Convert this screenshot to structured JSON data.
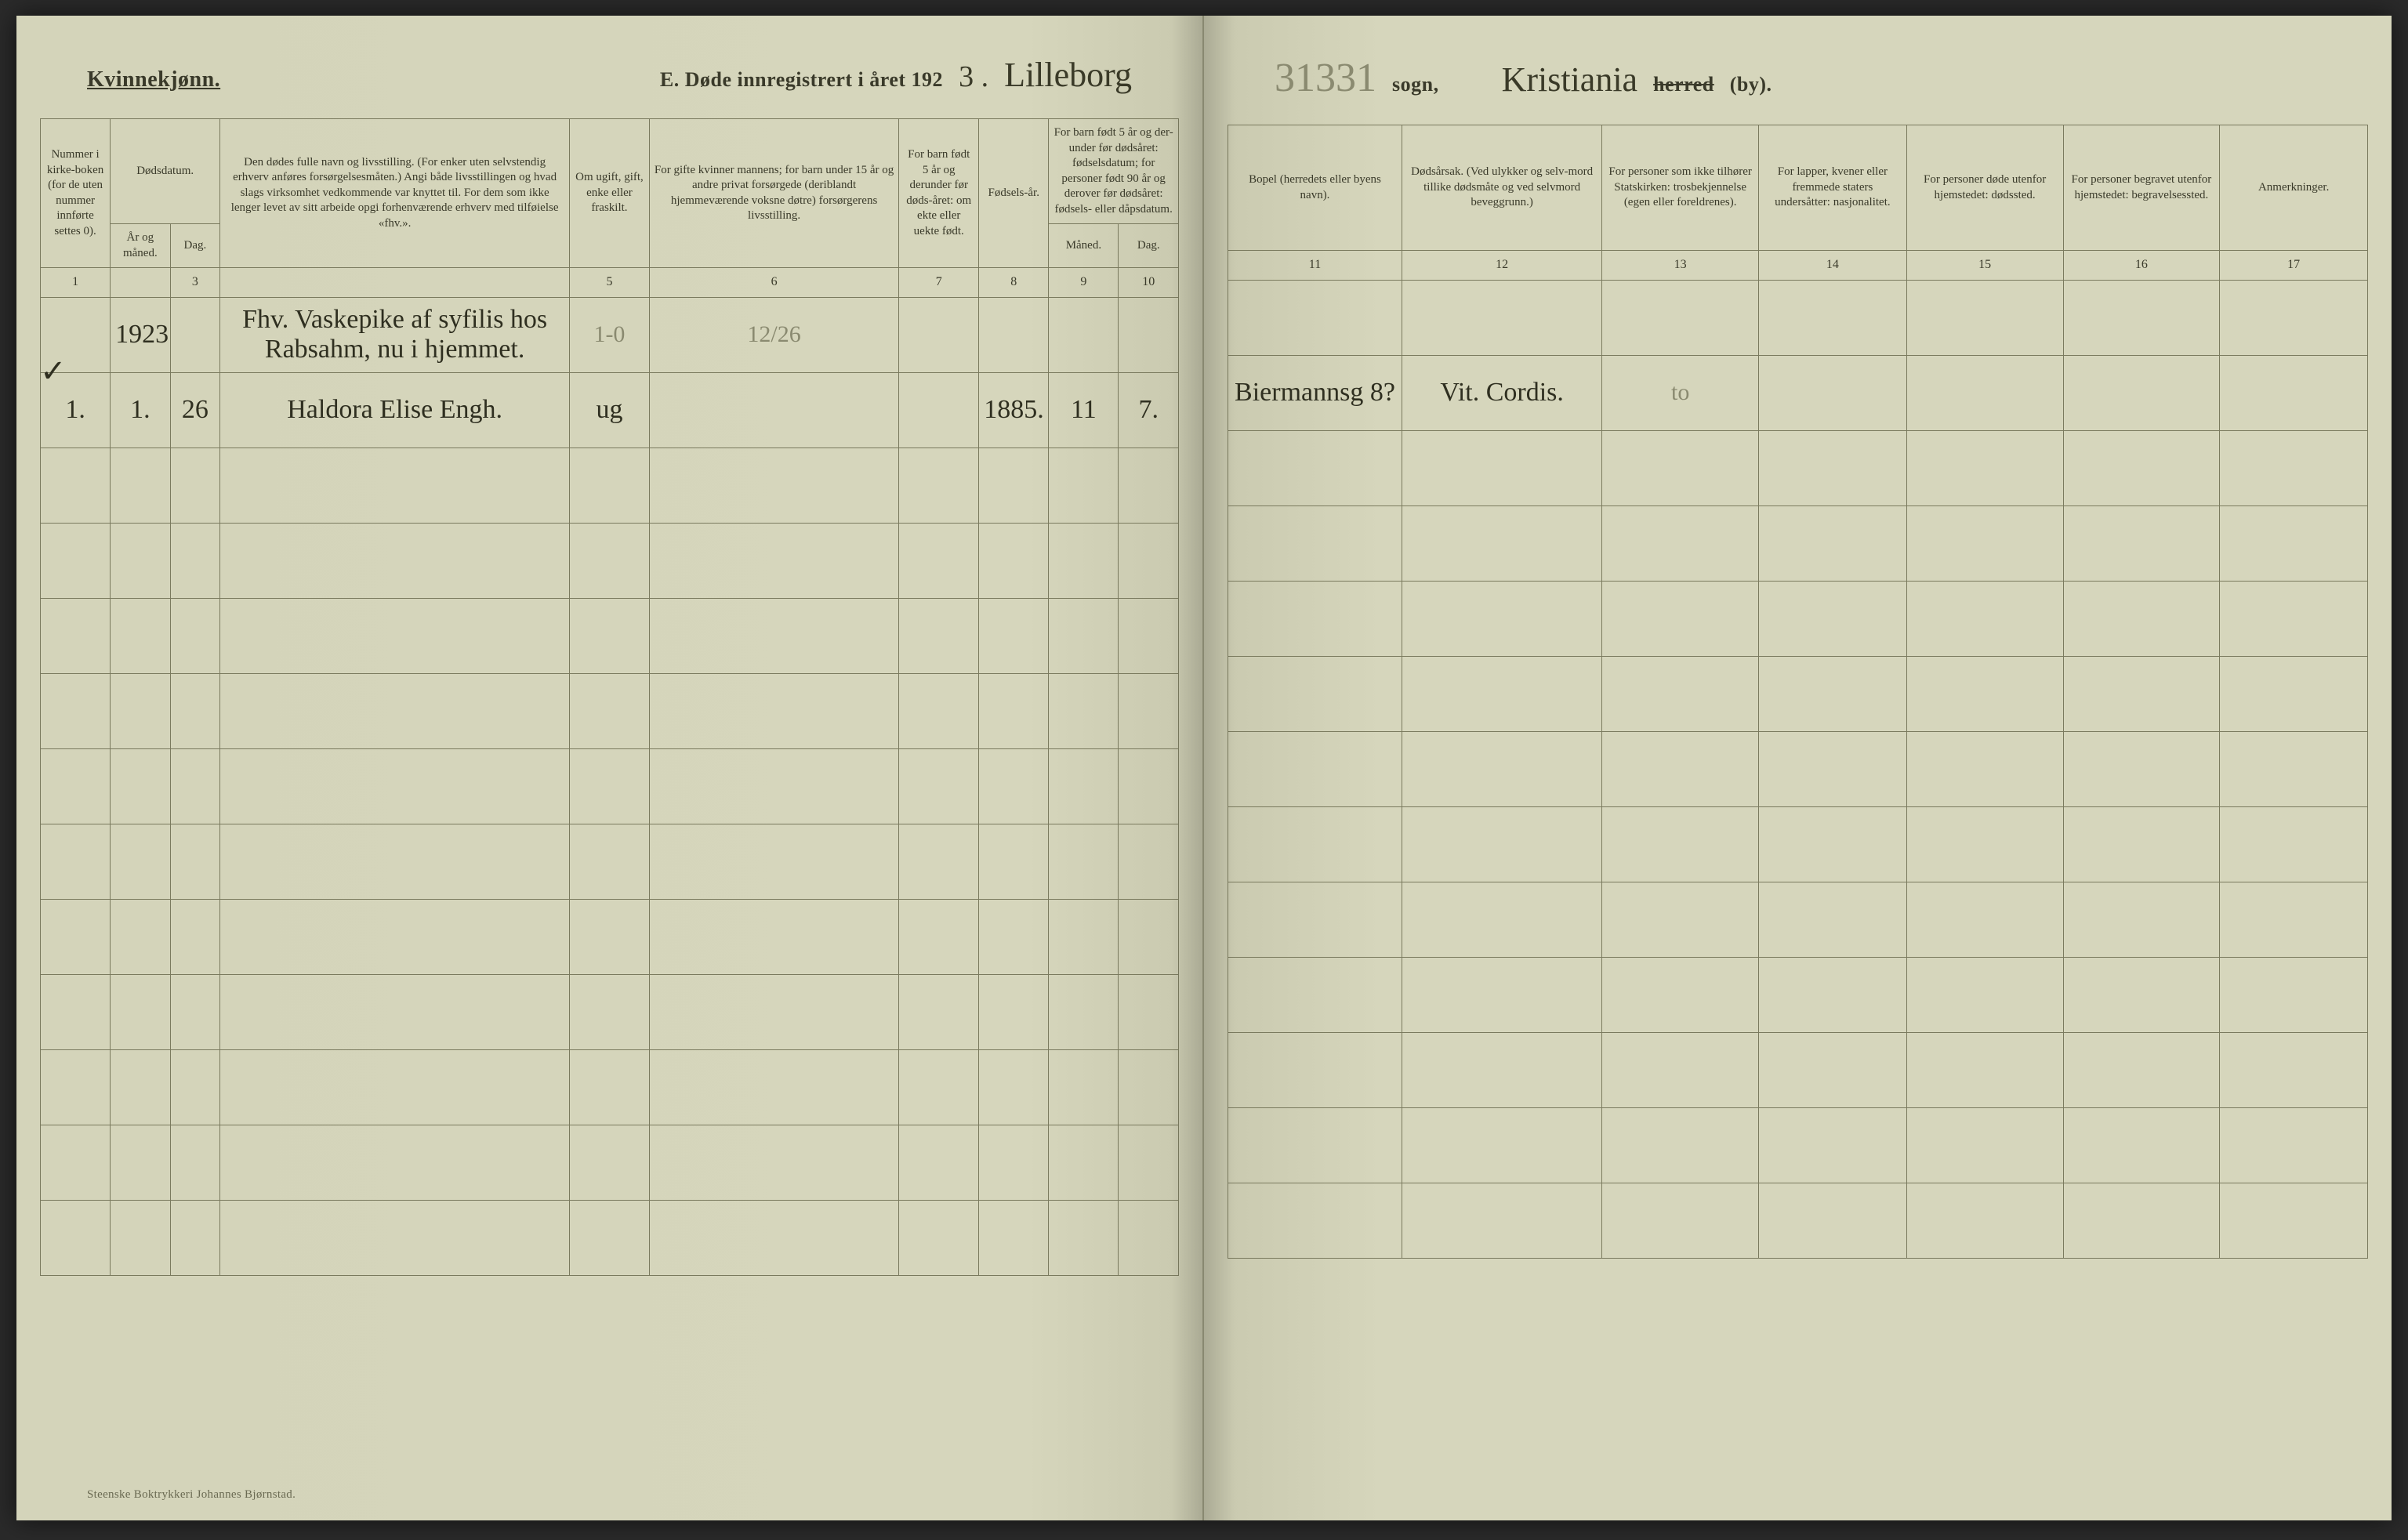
{
  "header": {
    "gender": "Kvinnekjønn.",
    "titlePrefix": "E.  Døde innregistrert i året 192",
    "yearSuffix": "3 .",
    "parishHand": "Lilleborg",
    "pencilNumber": "31331",
    "sognLabel": "sogn,",
    "herredHand": "Kristiania",
    "herredPrinted": "herred",
    "byPrinted": "(by)."
  },
  "columnsLeft": {
    "c1": "Nummer i kirke-boken (for de uten nummer innførte settes 0).",
    "c2": "Dødsdatum.",
    "c2a": "År og måned.",
    "c2b": "Dag.",
    "c3": "Den dødes fulle navn og livsstilling. (For enker uten selvstendig erhverv anføres forsørgelsesmåten.) Angi både livsstillingen og hvad slags virksomhet vedkommende var knyttet til. For dem som ikke lenger levet av sitt arbeide opgi forhenværende erhverv med tilføielse «fhv.».",
    "c4": "Om ugift, gift, enke eller fraskilt.",
    "c5": "For gifte kvinner mannens; for barn under 15 år og andre privat forsørgede (deriblandt hjemmeværende voksne døtre) forsørgerens livsstilling.",
    "c6": "For barn født 5 år og derunder før døds-året: om ekte eller uekte født.",
    "c7": "Fødsels-år.",
    "c8": "For barn født 5 år og der-under før dødsåret: fødselsdatum; for personer født 90 år og derover før dødsåret: fødsels- eller dåpsdatum.",
    "c8a": "Måned.",
    "c8b": "Dag."
  },
  "columnsRight": {
    "c11": "Bopel (herredets eller byens navn).",
    "c12": "Dødsårsak. (Ved ulykker og selv-mord tillike dødsmåte og ved selvmord beveggrunn.)",
    "c13": "For personer som ikke tilhører Statskirken: trosbekjennelse (egen eller foreldrenes).",
    "c14": "For lapper, kvener eller fremmede staters undersåtter: nasjonalitet.",
    "c15": "For personer døde utenfor hjemstedet: dødssted.",
    "c16": "For personer begravet utenfor hjemstedet: begravelsessted.",
    "c17": "Anmerkninger."
  },
  "colNumsLeft": [
    "1",
    "",
    "3",
    "",
    "5",
    "6",
    "7",
    "8",
    "9",
    "10"
  ],
  "colNumsRight": [
    "11",
    "12",
    "13",
    "14",
    "15",
    "16",
    "17"
  ],
  "rows": [
    {
      "num": "",
      "yearMonth": "1923.",
      "day": "",
      "name": "Fhv. Vaskepike af syfilis hos Rabsahm, nu i hjemmet.",
      "marital": "1-0",
      "provider": "12/26",
      "ekte": "",
      "birthYear": "",
      "bMonth": "",
      "bDay": "",
      "bopel": "",
      "cause": "",
      "belief": "",
      "nation": "",
      "deathPlace": "",
      "burialPlace": "",
      "remarks": ""
    },
    {
      "num": "1.",
      "yearMonth": "1.",
      "day": "26",
      "name": "Haldora Elise Engh.",
      "marital": "ug",
      "provider": "",
      "ekte": "",
      "birthYear": "1885.",
      "bMonth": "11",
      "bDay": "7.",
      "bopel": "Biermannsg 8?",
      "cause": "Vit. Cordis.",
      "belief": "to",
      "nation": "",
      "deathPlace": "",
      "burialPlace": "",
      "remarks": ""
    },
    {
      "num": "",
      "yearMonth": "",
      "day": "",
      "name": "",
      "marital": "",
      "provider": "",
      "ekte": "",
      "birthYear": "",
      "bMonth": "",
      "bDay": "",
      "bopel": "",
      "cause": "",
      "belief": "",
      "nation": "",
      "deathPlace": "",
      "burialPlace": "",
      "remarks": ""
    },
    {
      "num": "",
      "yearMonth": "",
      "day": "",
      "name": "",
      "marital": "",
      "provider": "",
      "ekte": "",
      "birthYear": "",
      "bMonth": "",
      "bDay": "",
      "bopel": "",
      "cause": "",
      "belief": "",
      "nation": "",
      "deathPlace": "",
      "burialPlace": "",
      "remarks": ""
    },
    {
      "num": "",
      "yearMonth": "",
      "day": "",
      "name": "",
      "marital": "",
      "provider": "",
      "ekte": "",
      "birthYear": "",
      "bMonth": "",
      "bDay": "",
      "bopel": "",
      "cause": "",
      "belief": "",
      "nation": "",
      "deathPlace": "",
      "burialPlace": "",
      "remarks": ""
    },
    {
      "num": "",
      "yearMonth": "",
      "day": "",
      "name": "",
      "marital": "",
      "provider": "",
      "ekte": "",
      "birthYear": "",
      "bMonth": "",
      "bDay": "",
      "bopel": "",
      "cause": "",
      "belief": "",
      "nation": "",
      "deathPlace": "",
      "burialPlace": "",
      "remarks": ""
    },
    {
      "num": "",
      "yearMonth": "",
      "day": "",
      "name": "",
      "marital": "",
      "provider": "",
      "ekte": "",
      "birthYear": "",
      "bMonth": "",
      "bDay": "",
      "bopel": "",
      "cause": "",
      "belief": "",
      "nation": "",
      "deathPlace": "",
      "burialPlace": "",
      "remarks": ""
    },
    {
      "num": "",
      "yearMonth": "",
      "day": "",
      "name": "",
      "marital": "",
      "provider": "",
      "ekte": "",
      "birthYear": "",
      "bMonth": "",
      "bDay": "",
      "bopel": "",
      "cause": "",
      "belief": "",
      "nation": "",
      "deathPlace": "",
      "burialPlace": "",
      "remarks": ""
    },
    {
      "num": "",
      "yearMonth": "",
      "day": "",
      "name": "",
      "marital": "",
      "provider": "",
      "ekte": "",
      "birthYear": "",
      "bMonth": "",
      "bDay": "",
      "bopel": "",
      "cause": "",
      "belief": "",
      "nation": "",
      "deathPlace": "",
      "burialPlace": "",
      "remarks": ""
    },
    {
      "num": "",
      "yearMonth": "",
      "day": "",
      "name": "",
      "marital": "",
      "provider": "",
      "ekte": "",
      "birthYear": "",
      "bMonth": "",
      "bDay": "",
      "bopel": "",
      "cause": "",
      "belief": "",
      "nation": "",
      "deathPlace": "",
      "burialPlace": "",
      "remarks": ""
    },
    {
      "num": "",
      "yearMonth": "",
      "day": "",
      "name": "",
      "marital": "",
      "provider": "",
      "ekte": "",
      "birthYear": "",
      "bMonth": "",
      "bDay": "",
      "bopel": "",
      "cause": "",
      "belief": "",
      "nation": "",
      "deathPlace": "",
      "burialPlace": "",
      "remarks": ""
    },
    {
      "num": "",
      "yearMonth": "",
      "day": "",
      "name": "",
      "marital": "",
      "provider": "",
      "ekte": "",
      "birthYear": "",
      "bMonth": "",
      "bDay": "",
      "bopel": "",
      "cause": "",
      "belief": "",
      "nation": "",
      "deathPlace": "",
      "burialPlace": "",
      "remarks": ""
    },
    {
      "num": "",
      "yearMonth": "",
      "day": "",
      "name": "",
      "marital": "",
      "provider": "",
      "ekte": "",
      "birthYear": "",
      "bMonth": "",
      "bDay": "",
      "bopel": "",
      "cause": "",
      "belief": "",
      "nation": "",
      "deathPlace": "",
      "burialPlace": "",
      "remarks": ""
    }
  ],
  "footer": {
    "imprint": "Steenske Boktrykkeri Johannes Bjørnstad."
  },
  "checkMark": "✓",
  "colors": {
    "paper": "#d6d6bc",
    "rule": "#7a7a5e",
    "ink": "#3a3a2a",
    "pencil": "#8a8a70"
  }
}
